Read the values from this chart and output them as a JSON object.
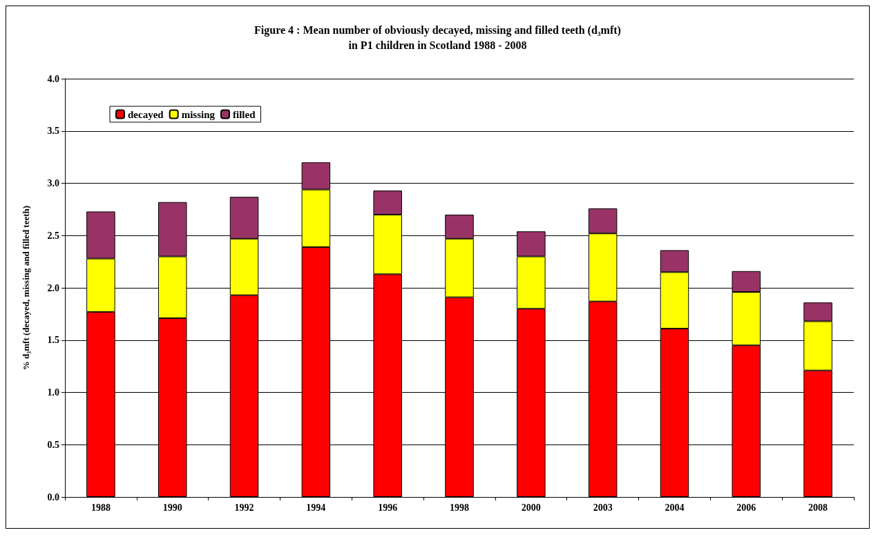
{
  "chart_data": {
    "type": "bar",
    "title": "Figure 4 : Mean number of obviously decayed, missing and filled teeth (d₃mft)\nin P1 children in Scotland 1988 - 2008",
    "ylabel": "% d₃mft (decayed, missing and filled teeth)",
    "categories": [
      "1988",
      "1990",
      "1992",
      "1994",
      "1996",
      "1998",
      "2000",
      "2003",
      "2004",
      "2006",
      "2008"
    ],
    "stacked": true,
    "series": [
      {
        "name": "decayed",
        "color": "#ff0000",
        "values": [
          1.77,
          1.71,
          1.93,
          2.39,
          2.13,
          1.91,
          1.8,
          1.87,
          1.61,
          1.45,
          1.21
        ]
      },
      {
        "name": "missing",
        "color": "#ffff00",
        "values": [
          0.51,
          0.59,
          0.54,
          0.55,
          0.57,
          0.56,
          0.5,
          0.65,
          0.54,
          0.51,
          0.47
        ]
      },
      {
        "name": "filled",
        "color": "#993366",
        "values": [
          0.45,
          0.52,
          0.4,
          0.26,
          0.23,
          0.23,
          0.24,
          0.24,
          0.21,
          0.2,
          0.18
        ]
      }
    ],
    "ylim": [
      0,
      4
    ],
    "yticks": [
      {
        "value": 0,
        "label": "0.0"
      },
      {
        "value": 0.5,
        "label": "0.5"
      },
      {
        "value": 1,
        "label": "1.0"
      },
      {
        "value": 1.5,
        "label": "1.5"
      },
      {
        "value": 2,
        "label": "2.0"
      },
      {
        "value": 2.5,
        "label": "2.5"
      },
      {
        "value": 3,
        "label": "3.0"
      },
      {
        "value": 3.5,
        "label": "3.5"
      },
      {
        "value": 4,
        "label": "4.0"
      }
    ],
    "grid": "y",
    "legend": "top left"
  }
}
